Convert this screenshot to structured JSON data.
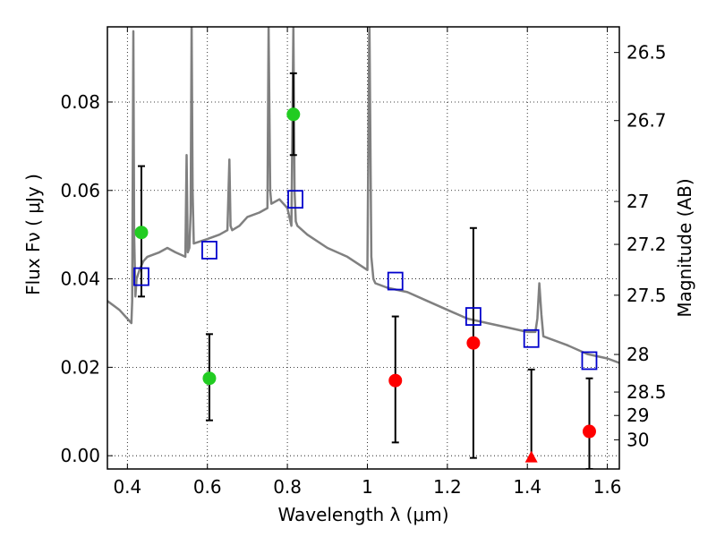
{
  "chart_data": {
    "type": "scatter",
    "title": "",
    "xlabel": "Wavelength  λ (μm)",
    "ylabel": "Flux  Fν  ( μJy )",
    "ylabel_right": "Magnitude (AB)",
    "xlim": [
      0.35,
      1.63
    ],
    "ylim": [
      -0.003,
      0.097
    ],
    "grid": true,
    "x_ticks": [
      0.4,
      0.6,
      0.8,
      1.0,
      1.2,
      1.4,
      1.6
    ],
    "x_tick_labels": [
      "0.4",
      "0.6",
      "0.8",
      "1",
      "1.2",
      "1.4",
      "1.6"
    ],
    "y_ticks": [
      0.0,
      0.02,
      0.04,
      0.06,
      0.08
    ],
    "y_tick_labels": [
      "0.00",
      "0.02",
      "0.04",
      "0.06",
      "0.08"
    ],
    "right_ticks": [
      {
        "label": "26.5",
        "flux": 0.0912
      },
      {
        "label": "26.7",
        "flux": 0.0758
      },
      {
        "label": "27",
        "flux": 0.0575
      },
      {
        "label": "27.2",
        "flux": 0.0478
      },
      {
        "label": "27.5",
        "flux": 0.0363
      },
      {
        "label": "28",
        "flux": 0.0229
      },
      {
        "label": "28.5",
        "flux": 0.0144
      },
      {
        "label": "29",
        "flux": 0.0091
      },
      {
        "label": "30",
        "flux": 0.0036
      }
    ],
    "colors": {
      "spectrum": "#808080",
      "detection_green": "#22cc22",
      "detection_red": "#ff0000",
      "model_box": "#0000cc",
      "errorbar": "#000000"
    },
    "series": [
      {
        "name": "Model spectrum",
        "kind": "line",
        "x": [
          0.35,
          0.38,
          0.41,
          0.412,
          0.415,
          0.417,
          0.42,
          0.423,
          0.43,
          0.44,
          0.45,
          0.48,
          0.5,
          0.52,
          0.545,
          0.548,
          0.551,
          0.555,
          0.558,
          0.5605,
          0.563,
          0.566,
          0.6,
          0.63,
          0.65,
          0.655,
          0.658,
          0.662,
          0.68,
          0.7,
          0.73,
          0.75,
          0.753,
          0.757,
          0.76,
          0.78,
          0.8,
          0.81,
          0.815,
          0.818,
          0.821,
          0.825,
          0.85,
          0.9,
          0.95,
          1.0,
          1.005,
          1.01,
          1.015,
          1.02,
          1.05,
          1.1,
          1.15,
          1.2,
          1.25,
          1.3,
          1.35,
          1.4,
          1.42,
          1.425,
          1.43,
          1.435,
          1.44,
          1.5,
          1.55,
          1.6,
          1.63
        ],
        "y": [
          0.035,
          0.033,
          0.03,
          0.035,
          0.096,
          0.05,
          0.036,
          0.04,
          0.042,
          0.044,
          0.045,
          0.046,
          0.047,
          0.046,
          0.045,
          0.068,
          0.046,
          0.047,
          0.055,
          0.098,
          0.06,
          0.048,
          0.049,
          0.05,
          0.051,
          0.067,
          0.052,
          0.051,
          0.052,
          0.054,
          0.055,
          0.056,
          0.097,
          0.06,
          0.057,
          0.058,
          0.056,
          0.052,
          0.097,
          0.06,
          0.053,
          0.052,
          0.05,
          0.047,
          0.045,
          0.042,
          0.1,
          0.045,
          0.04,
          0.039,
          0.038,
          0.037,
          0.035,
          0.033,
          0.031,
          0.03,
          0.029,
          0.028,
          0.028,
          0.031,
          0.039,
          0.032,
          0.027,
          0.025,
          0.023,
          0.022,
          0.021
        ]
      },
      {
        "name": "Green detections",
        "kind": "points",
        "points": [
          {
            "x": 0.435,
            "y": 0.0505,
            "yerr_lo": 0.0145,
            "yerr_hi": 0.015
          },
          {
            "x": 0.605,
            "y": 0.0175,
            "yerr_lo": 0.0095,
            "yerr_hi": 0.01
          },
          {
            "x": 0.815,
            "y": 0.0772,
            "yerr_lo": 0.0092,
            "yerr_hi": 0.0093
          }
        ]
      },
      {
        "name": "Red detections",
        "kind": "points",
        "points": [
          {
            "x": 1.07,
            "y": 0.017,
            "yerr_lo": 0.014,
            "yerr_hi": 0.0145
          },
          {
            "x": 1.265,
            "y": 0.0255,
            "yerr_lo": 0.026,
            "yerr_hi": 0.026
          },
          {
            "x": 1.41,
            "y": -0.0005,
            "yerr_lo": 0.0,
            "yerr_hi": 0.02,
            "marker": "triangle"
          },
          {
            "x": 1.555,
            "y": 0.0055,
            "yerr_lo": 0.0085,
            "yerr_hi": 0.012
          }
        ]
      },
      {
        "name": "Model fluxes",
        "kind": "boxes",
        "points": [
          {
            "x": 0.435,
            "y": 0.0405
          },
          {
            "x": 0.605,
            "y": 0.0465
          },
          {
            "x": 0.82,
            "y": 0.058
          },
          {
            "x": 1.07,
            "y": 0.0395
          },
          {
            "x": 1.265,
            "y": 0.0315
          },
          {
            "x": 1.41,
            "y": 0.0265
          },
          {
            "x": 1.555,
            "y": 0.0215
          }
        ]
      }
    ]
  }
}
